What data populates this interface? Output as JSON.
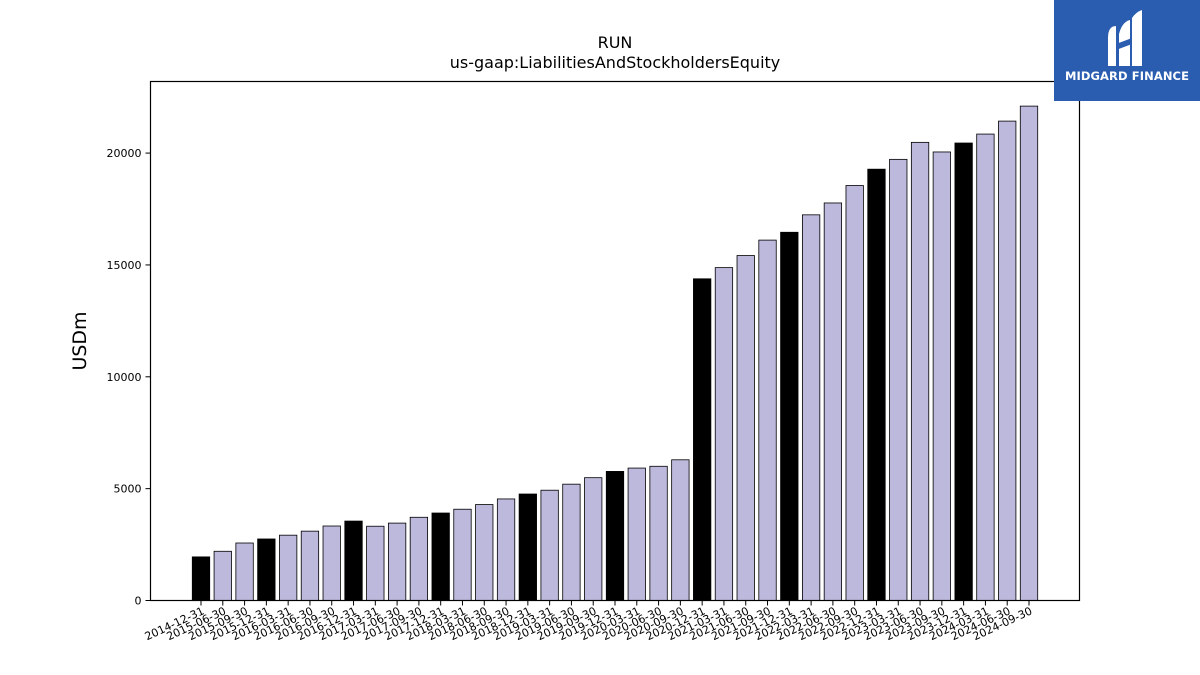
{
  "chart_data": {
    "type": "bar",
    "title": "RUN",
    "subtitle": "us-gaap:LiabilitiesAndStockholdersEquity",
    "xlabel": "",
    "ylabel": "USDm",
    "ylim": [
      0,
      23200
    ],
    "yticks": [
      0,
      5000,
      10000,
      15000,
      20000
    ],
    "grid": false,
    "categories": [
      "2014-12-31",
      "2015-06-30",
      "2015-09-30",
      "2015-12-31",
      "2016-03-31",
      "2016-06-30",
      "2016-09-30",
      "2016-12-31",
      "2017-03-31",
      "2017-06-30",
      "2017-09-30",
      "2017-12-31",
      "2018-03-31",
      "2018-06-30",
      "2018-09-30",
      "2018-12-31",
      "2019-03-31",
      "2019-06-30",
      "2019-09-30",
      "2019-12-31",
      "2020-03-31",
      "2020-06-30",
      "2020-09-30",
      "2020-12-31",
      "2021-03-31",
      "2021-06-30",
      "2021-09-30",
      "2021-12-31",
      "2022-03-31",
      "2022-06-30",
      "2022-09-30",
      "2022-12-31",
      "2023-03-31",
      "2023-06-30",
      "2023-09-30",
      "2023-12-31",
      "2024-03-31",
      "2024-06-30",
      "2024-09-30"
    ],
    "values": [
      1950,
      2200,
      2570,
      2750,
      2920,
      3100,
      3330,
      3550,
      3320,
      3460,
      3720,
      3910,
      4080,
      4290,
      4540,
      4760,
      4930,
      5200,
      5490,
      5770,
      5920,
      6000,
      6290,
      14380,
      14880,
      15420,
      16110,
      16460,
      17240,
      17770,
      18550,
      19280,
      19720,
      20480,
      20050,
      20450,
      20850,
      21430,
      22100
    ],
    "highlight": [
      true,
      false,
      false,
      true,
      false,
      false,
      false,
      true,
      false,
      false,
      false,
      true,
      false,
      false,
      false,
      true,
      false,
      false,
      false,
      true,
      false,
      false,
      false,
      true,
      false,
      false,
      false,
      true,
      false,
      false,
      false,
      true,
      false,
      false,
      false,
      true,
      false,
      false,
      false
    ],
    "colors": {
      "bar": "#bcb9dc",
      "highlight": "#000000",
      "edge": "#000000",
      "logo_bg": "#2a5db0"
    }
  },
  "logo": {
    "text": "MIDGARD FINANCE"
  }
}
